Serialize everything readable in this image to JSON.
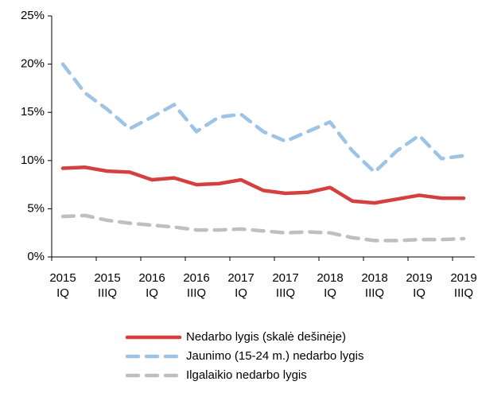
{
  "chart_data": {
    "type": "line",
    "categories": [
      [
        "2015",
        "IQ"
      ],
      null,
      [
        "2015",
        "IIIQ"
      ],
      null,
      [
        "2016",
        "IQ"
      ],
      null,
      [
        "2016",
        "IIIQ"
      ],
      null,
      [
        "2017",
        "IQ"
      ],
      null,
      [
        "2017",
        "IIIQ"
      ],
      null,
      [
        "2018",
        "IQ"
      ],
      null,
      [
        "2018",
        "IIIQ"
      ],
      null,
      [
        "2019",
        "IQ"
      ],
      null,
      [
        "2019",
        "IIIQ"
      ]
    ],
    "series": [
      {
        "name": "Nedarbo lygis (skalė dešinėje)",
        "color": "#d43f3f",
        "dash": false,
        "values": [
          9.2,
          9.3,
          8.9,
          8.8,
          8.0,
          8.2,
          7.5,
          7.6,
          8.0,
          6.9,
          6.6,
          6.7,
          7.2,
          5.8,
          5.6,
          6.0,
          6.4,
          6.1,
          6.1
        ]
      },
      {
        "name": "Jaunimo (15-24 m.) nedarbo lygis",
        "color": "#9dc3e6",
        "dash": true,
        "values": [
          20.0,
          17.0,
          15.3,
          13.3,
          14.5,
          15.8,
          13.0,
          14.5,
          14.8,
          13.0,
          12.0,
          13.0,
          14.0,
          11.0,
          8.8,
          11.0,
          12.6,
          10.2,
          10.5
        ]
      },
      {
        "name": "Ilgalaikio nedarbo lygis",
        "color": "#bfbfbf",
        "dash": true,
        "values": [
          4.2,
          4.3,
          3.8,
          3.5,
          3.3,
          3.1,
          2.8,
          2.8,
          2.9,
          2.7,
          2.5,
          2.6,
          2.5,
          2.0,
          1.7,
          1.7,
          1.8,
          1.8,
          1.9
        ]
      }
    ],
    "ylim": [
      0,
      25
    ],
    "yticks": [
      {
        "value": 0,
        "label": "0%"
      },
      {
        "value": 5,
        "label": "5%"
      },
      {
        "value": 10,
        "label": "10%"
      },
      {
        "value": 15,
        "label": "15%"
      },
      {
        "value": 20,
        "label": "20%"
      },
      {
        "value": 25,
        "label": "25%"
      }
    ],
    "legend": "bottom"
  }
}
